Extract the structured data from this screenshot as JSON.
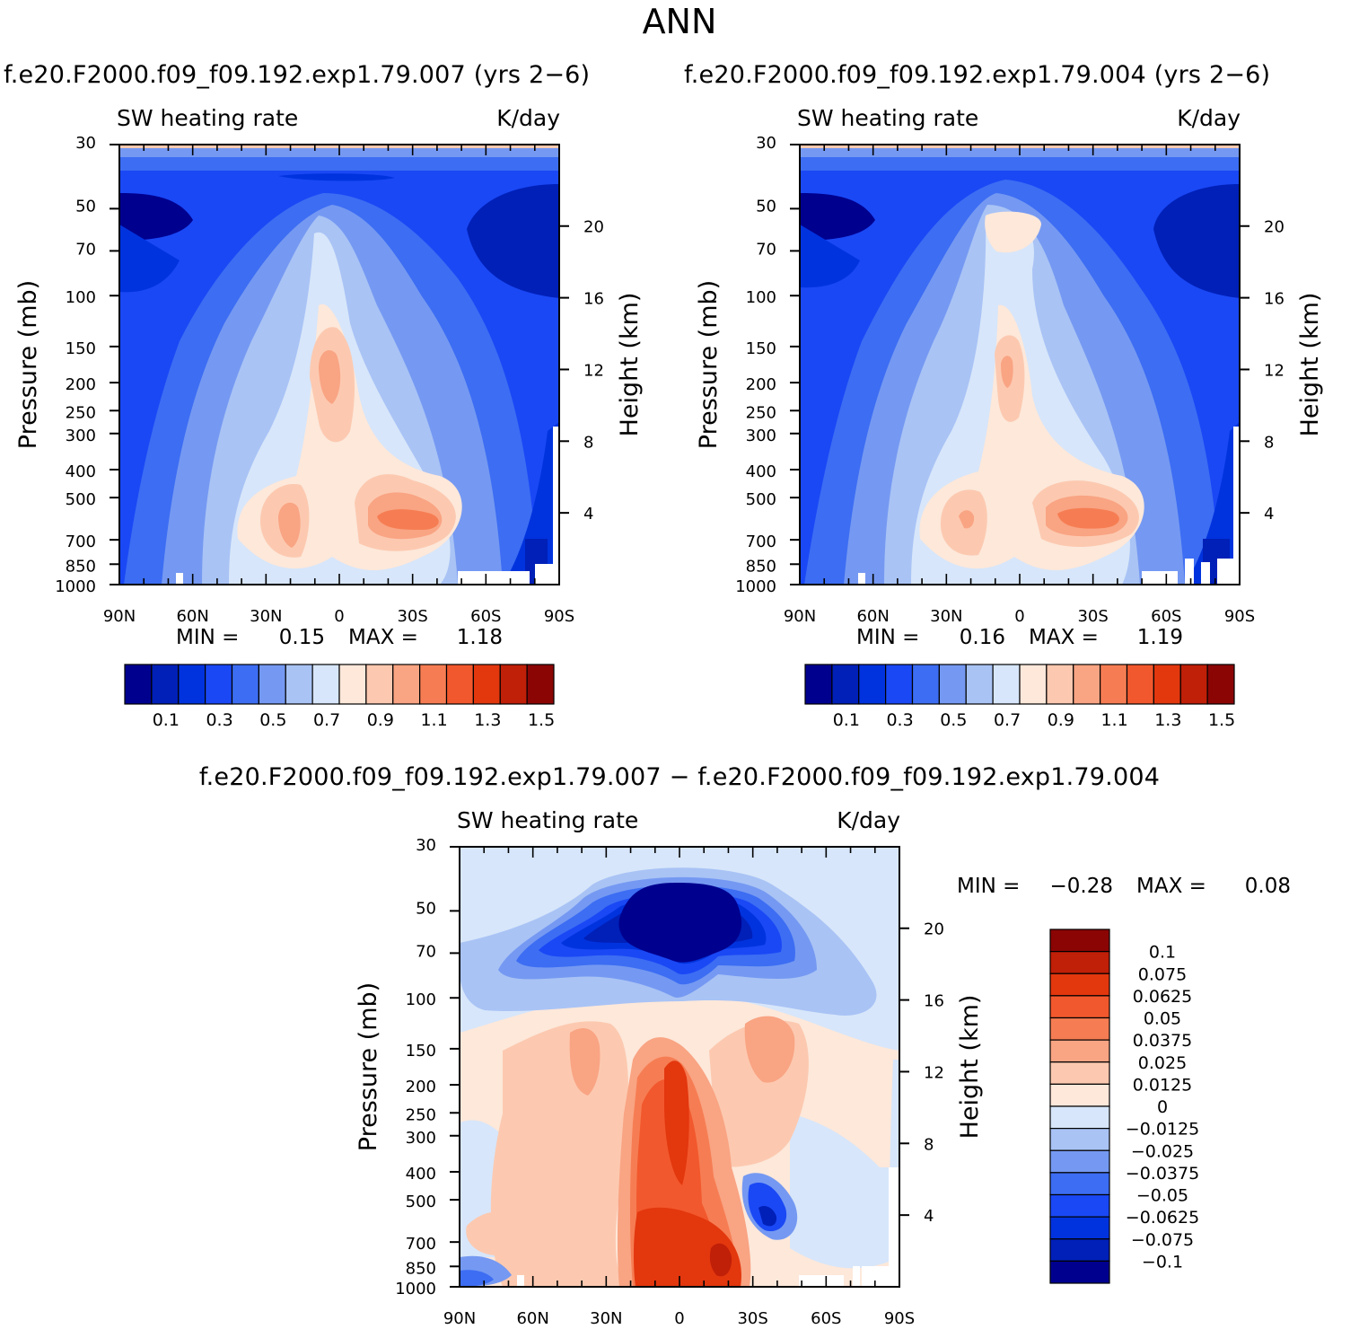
{
  "figure": {
    "title": "ANN",
    "case1_title": "f.e20.F2000.f09_f09.192.exp1.79.007 (yrs 2−6)",
    "case2_title": "f.e20.F2000.f09_f09.192.exp1.79.004 (yrs 2−6)",
    "diff_title": "f.e20.F2000.f09_f09.192.exp1.79.007 − f.e20.F2000.f09_f09.192.exp1.79.004"
  },
  "chart_data": [
    {
      "type": "contour",
      "title": "f.e20.F2000.f09_f09.192.exp1.79.007 (yrs 2−6)",
      "variable": "SW heating rate",
      "units": "K/day",
      "ylabel": "Pressure (mb)",
      "ylabel_right": "Height (km)",
      "x_ticks": [
        "90N",
        "60N",
        "30N",
        "0",
        "30S",
        "60S",
        "90S"
      ],
      "y_ticks": [
        "30",
        "50",
        "70",
        "100",
        "150",
        "200",
        "250",
        "300",
        "400",
        "500",
        "700",
        "850",
        "1000"
      ],
      "y_ticks_right": [
        "20",
        "16",
        "12",
        "8",
        "4"
      ],
      "ylim": [
        1000,
        30
      ],
      "min_label": "MIN =",
      "min": "0.15",
      "max_label": "MAX =",
      "max": "1.18",
      "levels": [
        "0.1",
        "0.3",
        "0.5",
        "0.7",
        "0.9",
        "1.1",
        "1.3",
        "1.5"
      ],
      "colors": [
        "#00008f",
        "#0020b8",
        "#0033de",
        "#1a48f5",
        "#3c6df3",
        "#7599f2",
        "#a9c3f5",
        "#d7e6fa",
        "#fde8da",
        "#fcc9b0",
        "#f9a483",
        "#f67d53",
        "#f2582d",
        "#e3370e",
        "#c01f08",
        "#8b0505"
      ]
    },
    {
      "type": "contour",
      "title": "f.e20.F2000.f09_f09.192.exp1.79.004 (yrs 2−6)",
      "variable": "SW heating rate",
      "units": "K/day",
      "ylabel": "Pressure (mb)",
      "ylabel_right": "Height (km)",
      "x_ticks": [
        "90N",
        "60N",
        "30N",
        "0",
        "30S",
        "60S",
        "90S"
      ],
      "y_ticks": [
        "30",
        "50",
        "70",
        "100",
        "150",
        "200",
        "250",
        "300",
        "400",
        "500",
        "700",
        "850",
        "1000"
      ],
      "y_ticks_right": [
        "20",
        "16",
        "12",
        "8",
        "4"
      ],
      "ylim": [
        1000,
        30
      ],
      "min_label": "MIN =",
      "min": "0.16",
      "max_label": "MAX =",
      "max": "1.19",
      "levels": [
        "0.1",
        "0.3",
        "0.5",
        "0.7",
        "0.9",
        "1.1",
        "1.3",
        "1.5"
      ],
      "colors": [
        "#00008f",
        "#0020b8",
        "#0033de",
        "#1a48f5",
        "#3c6df3",
        "#7599f2",
        "#a9c3f5",
        "#d7e6fa",
        "#fde8da",
        "#fcc9b0",
        "#f9a483",
        "#f67d53",
        "#f2582d",
        "#e3370e",
        "#c01f08",
        "#8b0505"
      ]
    },
    {
      "type": "contour",
      "title": "f.e20.F2000.f09_f09.192.exp1.79.007 − f.e20.F2000.f09_f09.192.exp1.79.004",
      "variable": "SW heating rate",
      "units": "K/day",
      "ylabel": "Pressure (mb)",
      "ylabel_right": "Height (km)",
      "x_ticks": [
        "90N",
        "60N",
        "30N",
        "0",
        "30S",
        "60S",
        "90S"
      ],
      "y_ticks": [
        "30",
        "50",
        "70",
        "100",
        "150",
        "200",
        "250",
        "300",
        "400",
        "500",
        "700",
        "850",
        "1000"
      ],
      "y_ticks_right": [
        "20",
        "16",
        "12",
        "8",
        "4"
      ],
      "ylim": [
        1000,
        30
      ],
      "min_label": "MIN =",
      "min": "−0.28",
      "max_label": "MAX =",
      "max": "0.08",
      "levels": [
        "0.1",
        "0.075",
        "0.0625",
        "0.05",
        "0.0375",
        "0.025",
        "0.0125",
        "0",
        "−0.0125",
        "−0.025",
        "−0.0375",
        "−0.05",
        "−0.0625",
        "−0.075",
        "−0.1"
      ],
      "colors": [
        "#8b0505",
        "#c01f08",
        "#e3370e",
        "#f2582d",
        "#f67d53",
        "#f9a483",
        "#fcc9b0",
        "#fde8da",
        "#d7e6fa",
        "#a9c3f5",
        "#7599f2",
        "#3c6df3",
        "#1a48f5",
        "#0033de",
        "#0020b8",
        "#00008f"
      ]
    }
  ]
}
